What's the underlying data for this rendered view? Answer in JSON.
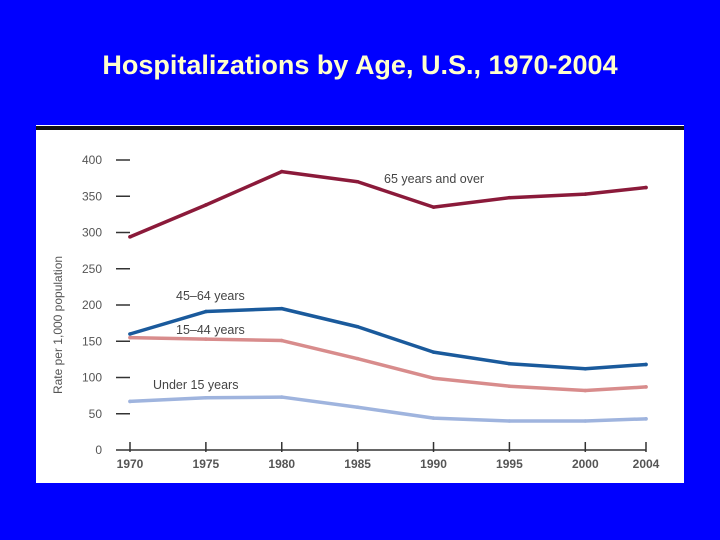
{
  "slide": {
    "title": "Hospitalizations by Age, U.S., 1970-2004"
  },
  "colors": {
    "background": "#0000ff",
    "title": "#ffffcc",
    "axis": "#333333",
    "text": "#555555"
  },
  "chart_data": {
    "type": "line",
    "title": "Hospitalizations by Age, U.S., 1970-2004",
    "xlabel": "",
    "ylabel": "Rate per 1,000 population",
    "x": [
      1970,
      1975,
      1980,
      1985,
      1990,
      1995,
      2000,
      2004
    ],
    "xticks": [
      "1970",
      "1975",
      "1980",
      "1985",
      "1990",
      "1995",
      "2000",
      "2004"
    ],
    "yticks": [
      "0",
      "50",
      "100",
      "150",
      "200",
      "250",
      "300",
      "350",
      "400"
    ],
    "ylim": [
      0,
      400
    ],
    "grid": false,
    "series": [
      {
        "name": "65 years and over",
        "color": "#8b1a3a",
        "values": [
          294,
          338,
          384,
          370,
          335,
          348,
          353,
          362
        ]
      },
      {
        "name": "45–64 years",
        "color": "#1a5a9c",
        "values": [
          160,
          191,
          195,
          170,
          135,
          119,
          112,
          118
        ]
      },
      {
        "name": "15–44 years",
        "color": "#d88c8c",
        "values": [
          155,
          153,
          151,
          126,
          99,
          88,
          82,
          87
        ]
      },
      {
        "name": "Under 15 years",
        "color": "#9fb4de",
        "values": [
          67,
          72,
          73,
          59,
          44,
          40,
          40,
          43
        ]
      }
    ]
  }
}
